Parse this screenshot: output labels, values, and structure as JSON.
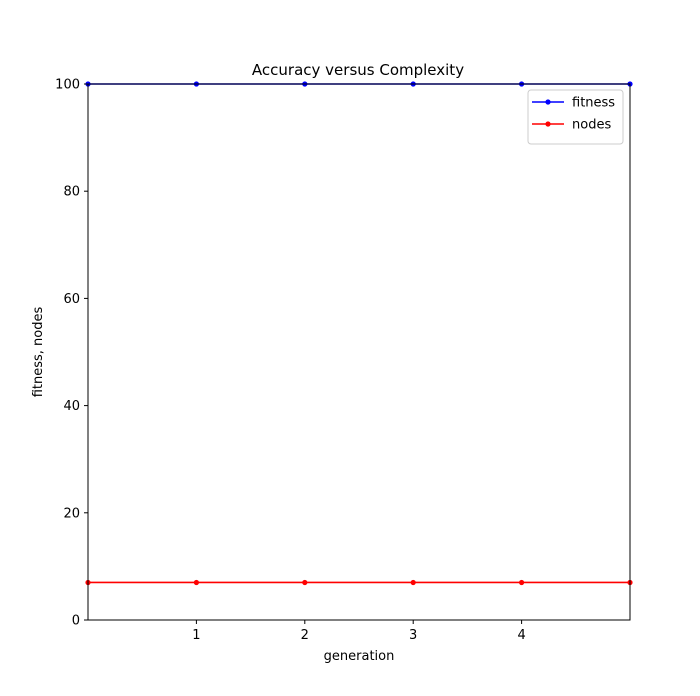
{
  "chart_data": {
    "type": "line",
    "title": "Accuracy versus Complexity",
    "xlabel": "generation",
    "ylabel": "fitness, nodes",
    "x": [
      0,
      1,
      2,
      3,
      4,
      5
    ],
    "xlim": [
      0,
      5
    ],
    "ylim": [
      0,
      100
    ],
    "xticks": [
      1,
      2,
      3,
      4
    ],
    "yticks": [
      0,
      20,
      40,
      60,
      80,
      100
    ],
    "grid": false,
    "legend_position": "top-right",
    "series": [
      {
        "name": "fitness",
        "color": "#0000ff",
        "values": [
          100,
          100,
          100,
          100,
          100,
          100
        ]
      },
      {
        "name": "nodes",
        "color": "#ff0000",
        "values": [
          7,
          7,
          7,
          7,
          7,
          7
        ]
      }
    ]
  }
}
